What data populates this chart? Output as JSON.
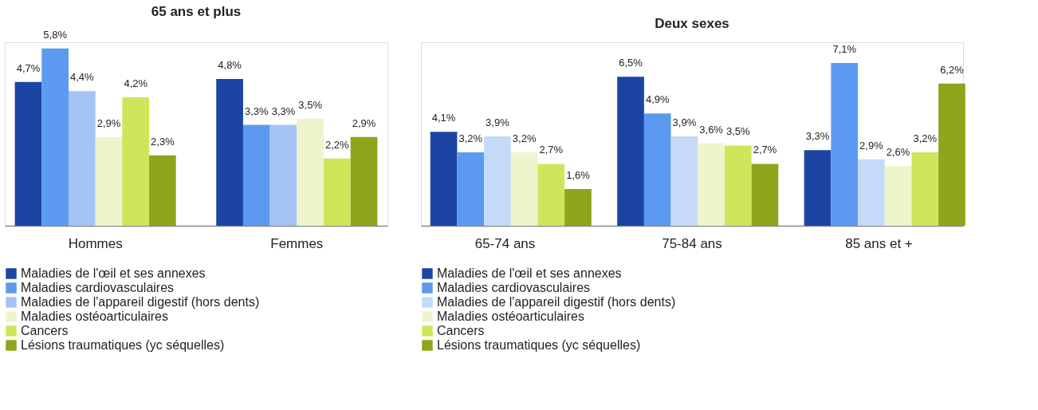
{
  "chart_data": [
    {
      "type": "bar",
      "title": "65 ans et plus",
      "categories": [
        "Hommes",
        "Femmes"
      ],
      "legend": "bottom",
      "grid": false,
      "series": [
        {
          "name": "Maladies de l'œil et ses annexes",
          "color": "#1c45a3",
          "values": [
            4.7,
            4.8
          ],
          "value_labels": [
            "4,7%",
            "4,8%"
          ]
        },
        {
          "name": "Maladies cardiovasculaires",
          "color": "#5b9af0",
          "values": [
            5.8,
            3.3
          ],
          "value_labels": [
            "5,8%",
            "3,3%"
          ]
        },
        {
          "name": "Maladies de l'appareil digestif (hors dents)",
          "color": "#a5c4f5",
          "values": [
            4.4,
            3.3
          ],
          "value_labels": [
            "4,4%",
            "3,3%"
          ]
        },
        {
          "name": "Maladies ostéoarticulaires",
          "color": "#eef5cd",
          "values": [
            2.9,
            3.5
          ],
          "value_labels": [
            "2,9%",
            "3,5%"
          ]
        },
        {
          "name": "Cancers",
          "color": "#cfe65a",
          "values": [
            4.2,
            2.2
          ],
          "value_labels": [
            "4,2%",
            "2,2%"
          ]
        },
        {
          "name": "Lésions traumatiques (yc séquelles)",
          "color": "#8ea51c",
          "values": [
            2.3,
            2.9
          ],
          "value_labels": [
            "2,3%",
            "2,9%"
          ]
        }
      ]
    },
    {
      "type": "bar",
      "title": "Deux sexes",
      "categories": [
        "65-74 ans",
        "75-84 ans",
        "85 ans et +"
      ],
      "legend": "bottom",
      "grid": false,
      "series": [
        {
          "name": "Maladies de l'œil et ses annexes",
          "color": "#1c45a3",
          "values": [
            4.1,
            6.5,
            3.3
          ],
          "value_labels": [
            "4,1%",
            "6,5%",
            "3,3%"
          ]
        },
        {
          "name": "Maladies cardiovasculaires",
          "color": "#5b9af0",
          "values": [
            3.2,
            4.9,
            7.1
          ],
          "value_labels": [
            "3,2%",
            "4,9%",
            "7,1%"
          ]
        },
        {
          "name": "Maladies de l'appareil digestif (hors dents)",
          "color": "#c5d9f9",
          "values": [
            3.9,
            3.9,
            2.9
          ],
          "value_labels": [
            "3,9%",
            "3,9%",
            "2,9%"
          ]
        },
        {
          "name": "Maladies ostéoarticulaires",
          "color": "#eef5cd",
          "values": [
            3.2,
            3.6,
            2.6
          ],
          "value_labels": [
            "3,2%",
            "3,6%",
            "2,6%"
          ]
        },
        {
          "name": "Cancers",
          "color": "#cfe65a",
          "values": [
            2.7,
            3.5,
            3.2
          ],
          "value_labels": [
            "2,7%",
            "3,5%",
            "3,2%"
          ]
        },
        {
          "name": "Lésions traumatiques (yc séquelles)",
          "color": "#8ea51c",
          "values": [
            1.6,
            2.7,
            6.2
          ],
          "value_labels": [
            "1,6%",
            "2,7%",
            "6,2%"
          ]
        }
      ]
    }
  ]
}
